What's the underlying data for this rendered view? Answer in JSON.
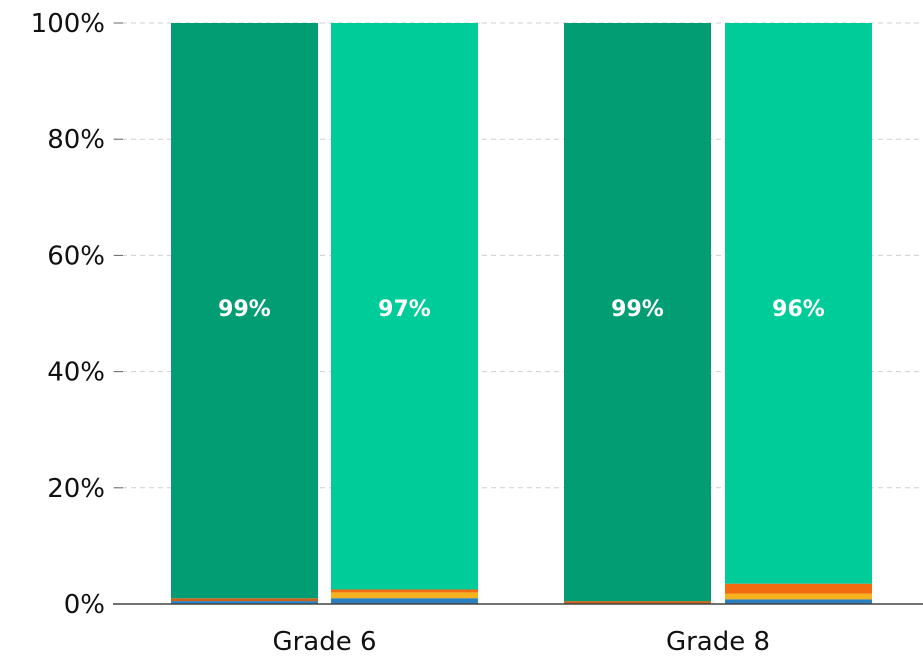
{
  "chart_data": {
    "type": "bar",
    "stacked": true,
    "categories": [
      "Grade 6",
      "Grade 8"
    ],
    "bars_per_category": 2,
    "ylim": [
      0,
      100
    ],
    "yticks": [
      0,
      20,
      40,
      60,
      80,
      100
    ],
    "ytick_labels": [
      "0%",
      "20%",
      "40%",
      "60%",
      "80%",
      "100%"
    ],
    "grid": "horizontal dashed",
    "bars": [
      {
        "category": "Grade 6",
        "segments": [
          0.5,
          0,
          0.5,
          99
        ],
        "label": "99%"
      },
      {
        "category": "Grade 6",
        "segments": [
          1,
          1,
          0.5,
          97.5
        ],
        "label": "97%"
      },
      {
        "category": "Grade 8",
        "segments": [
          0,
          0,
          0.5,
          99.5
        ],
        "label": "99%"
      },
      {
        "category": "Grade 8",
        "segments": [
          0.8,
          1,
          1.7,
          96.5
        ],
        "label": "96%"
      }
    ],
    "segment_colors_by_bar": [
      [
        "#2a7fbf",
        "#f5b21e",
        "#c9621a",
        "#039d74"
      ],
      [
        "#2a7fbf",
        "#f5b21e",
        "#f26b0f",
        "#00cc99"
      ],
      [
        "#2a7fbf",
        "#f5b21e",
        "#c9621a",
        "#039d74"
      ],
      [
        "#2a7fbf",
        "#f5b21e",
        "#f26b0f",
        "#00cc99"
      ]
    ]
  }
}
